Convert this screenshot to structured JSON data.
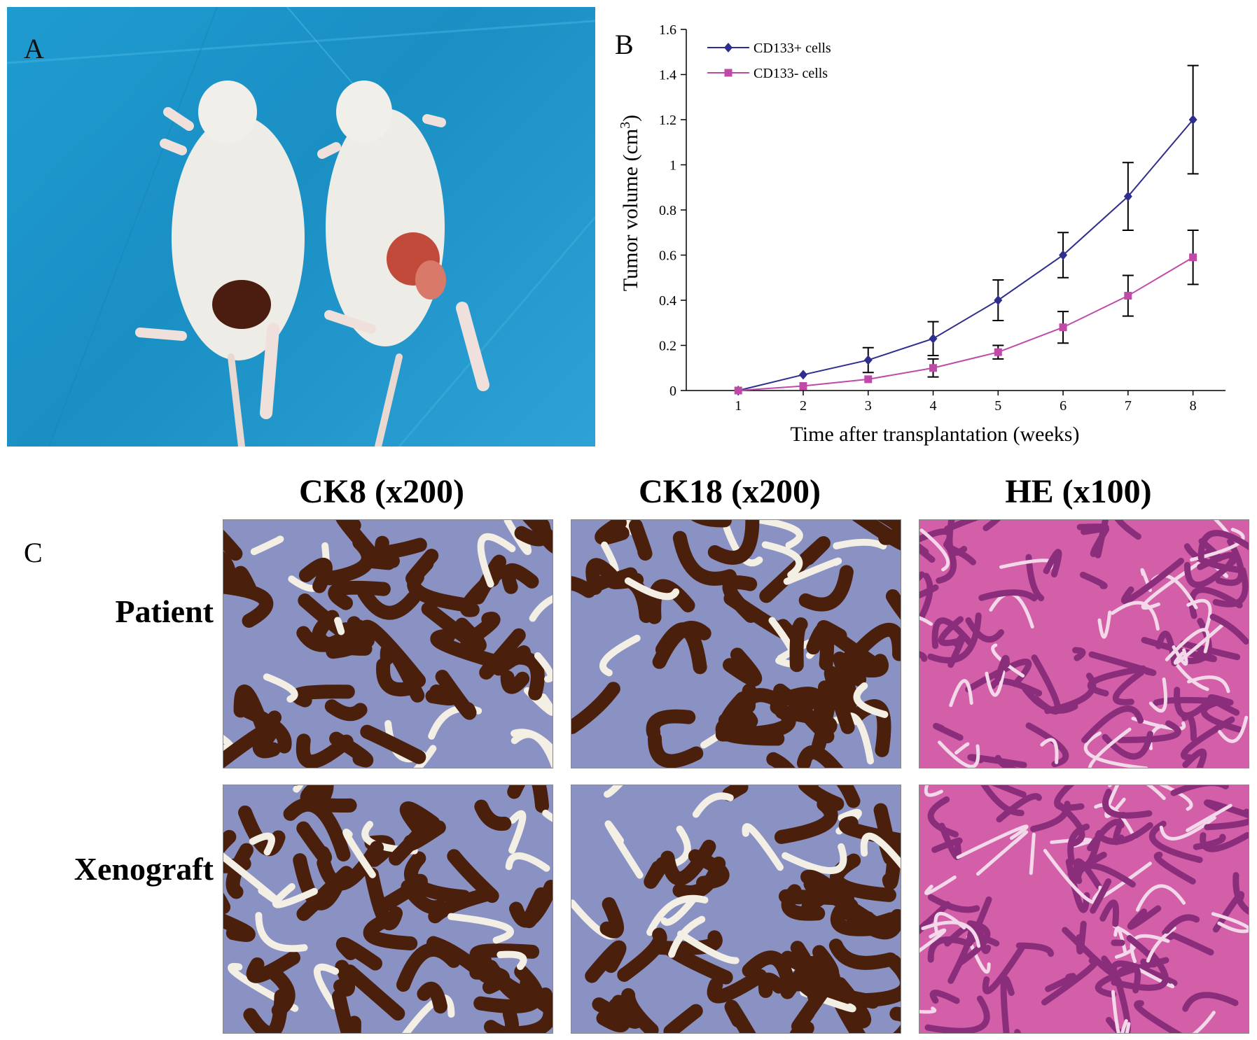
{
  "panels": {
    "a_label": "A",
    "b_label": "B",
    "c_label": "C"
  },
  "panel_c": {
    "columns": [
      "CK8 (x200)",
      "CK18 (x200)",
      "HE (x100)"
    ],
    "rows": [
      "Patient",
      "Xenograft"
    ]
  },
  "colors": {
    "drape": "#1f9bd0",
    "series_plus": "#2e2e8c",
    "series_minus": "#c04aa8",
    "ihc_brown": "#5a2a10",
    "ihc_blue": "#5a6fb0",
    "he_pink": "#c04d9a"
  },
  "chart_data": {
    "type": "line",
    "xlabel": "Time after transplantation (weeks)",
    "ylabel": "Tumor volume (cm3)",
    "ylabel_main": "Tumor volume (cm",
    "ylabel_sup": "3",
    "ylabel_close": ")",
    "x": [
      1,
      2,
      3,
      4,
      5,
      6,
      7,
      8
    ],
    "xlim": [
      0.2,
      8.5
    ],
    "ylim": [
      0,
      1.6
    ],
    "yticks": [
      "0",
      "0.2",
      "0.4",
      "0.6",
      "0.8",
      "1",
      "1.2",
      "1.4",
      "1.6"
    ],
    "xticks": [
      "1",
      "2",
      "3",
      "4",
      "5",
      "6",
      "7",
      "8"
    ],
    "legend_position": "top-left",
    "series": [
      {
        "name": "CD133+ cells",
        "marker": "diamond",
        "color": "#2e2e8c",
        "values": [
          0,
          0.07,
          0.135,
          0.23,
          0.4,
          0.6,
          0.86,
          1.2
        ],
        "errors": [
          0,
          0,
          0.055,
          0.075,
          0.09,
          0.1,
          0.15,
          0.24
        ]
      },
      {
        "name": "CD133-  cells",
        "marker": "square",
        "color": "#c04aa8",
        "values": [
          0,
          0.02,
          0.05,
          0.1,
          0.17,
          0.28,
          0.42,
          0.59
        ],
        "errors": [
          0,
          0,
          0,
          0.04,
          0.03,
          0.07,
          0.09,
          0.12
        ]
      }
    ]
  }
}
